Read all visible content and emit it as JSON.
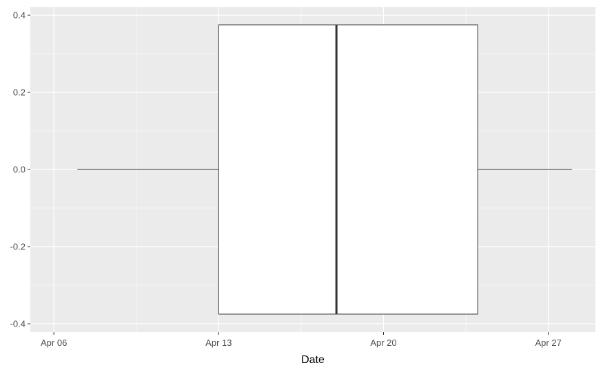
{
  "chart_data": {
    "type": "boxplot",
    "xlabel": "Date",
    "ylabel": "",
    "xlim": [
      "2023-04-05",
      "2023-04-29"
    ],
    "ylim": [
      -0.4,
      0.4
    ],
    "x_ticks": [
      {
        "date": "2023-04-06",
        "label": "Apr 06"
      },
      {
        "date": "2023-04-13",
        "label": "Apr 13"
      },
      {
        "date": "2023-04-20",
        "label": "Apr 20"
      },
      {
        "date": "2023-04-27",
        "label": "Apr 27"
      }
    ],
    "y_ticks": [
      {
        "value": 0.4,
        "label": "0.4"
      },
      {
        "value": 0.2,
        "label": "0.2"
      },
      {
        "value": 0.0,
        "label": "0.0"
      },
      {
        "value": -0.2,
        "label": "-0.2"
      },
      {
        "value": -0.4,
        "label": "-0.4"
      }
    ],
    "box": {
      "min": "2023-04-07",
      "q1": "2023-04-13",
      "median": "2023-04-18",
      "q3": "2023-04-24",
      "max": "2023-04-28",
      "y_center": 0.0,
      "half_height": 0.375
    },
    "grid": true,
    "colors": {
      "panel": "#ebebeb",
      "grid": "#ffffff",
      "box_fill": "#ffffff",
      "box_line": "#333333"
    }
  }
}
